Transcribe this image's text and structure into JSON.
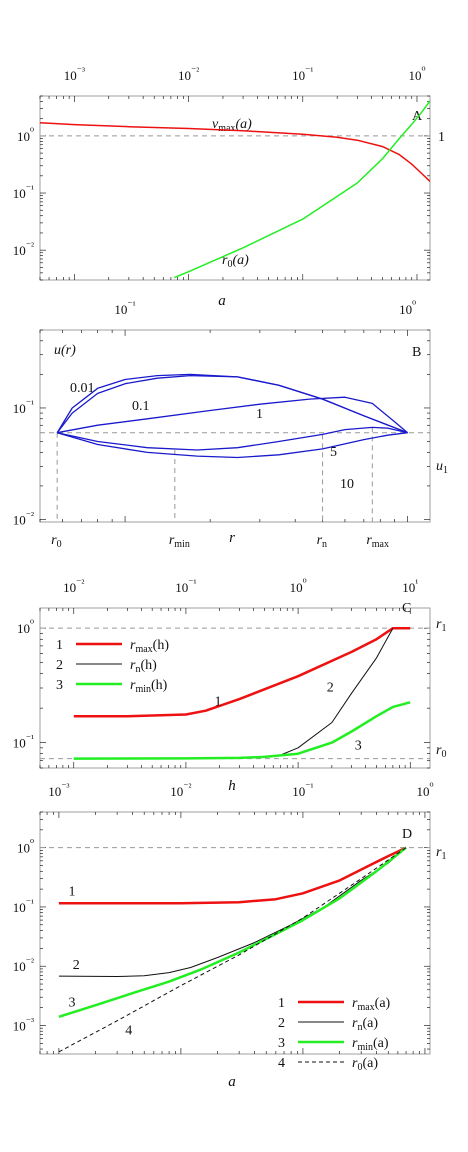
{
  "chart_data": [
    {
      "panel": "A",
      "type": "line",
      "xlabel": "a",
      "x_scale": "log",
      "y_scale": "log",
      "xlim": [
        0.0005,
        1.3
      ],
      "ylim": [
        0.003,
        5
      ],
      "x_ticks": [
        {
          "v": 0.001,
          "label": "10⁻³"
        },
        {
          "v": 0.01,
          "label": "10⁻²"
        },
        {
          "v": 0.1,
          "label": "10⁻¹"
        },
        {
          "v": 1,
          "label": "10⁰"
        }
      ],
      "y_ticks": [
        {
          "v": 1,
          "label": "10⁰"
        },
        {
          "v": 0.1,
          "label": "10⁻¹"
        },
        {
          "v": 0.01,
          "label": "10⁻²"
        }
      ],
      "hlines": [
        {
          "y": 1,
          "label": "1"
        }
      ],
      "series": [
        {
          "name": "vmax(a)",
          "color": "#ee1111",
          "width": 1.5,
          "x": [
            0.0005,
            0.001,
            0.003,
            0.01,
            0.03,
            0.1,
            0.2,
            0.3,
            0.5,
            0.7,
            0.9,
            1.1,
            1.3
          ],
          "y": [
            1.7,
            1.58,
            1.45,
            1.35,
            1.23,
            1.07,
            0.95,
            0.84,
            0.65,
            0.47,
            0.32,
            0.22,
            0.16
          ]
        },
        {
          "name": "r0(a)",
          "color": "#22ee22",
          "width": 1.5,
          "x": [
            0.0075,
            0.01,
            0.03,
            0.1,
            0.3,
            0.5,
            0.7,
            0.9,
            1.1,
            1.3
          ],
          "y": [
            0.0033,
            0.0042,
            0.011,
            0.035,
            0.15,
            0.4,
            0.9,
            1.6,
            2.6,
            4.1
          ]
        }
      ]
    },
    {
      "panel": "B",
      "type": "line",
      "xlabel": "r",
      "ylabel": "u(r)",
      "x_scale": "log",
      "y_scale": "log",
      "xlim": [
        0.05,
        1.2
      ],
      "ylim": [
        0.0095,
        0.5
      ],
      "x_ticks": [
        {
          "v": 0.1,
          "label": "10⁻¹"
        },
        {
          "v": 1,
          "label": "10⁰"
        }
      ],
      "y_ticks": [
        {
          "v": 0.1,
          "label": "10⁻¹"
        },
        {
          "v": 0.01,
          "label": "10⁻²"
        }
      ],
      "hlines": [
        {
          "y": 0.06,
          "label": "u1"
        }
      ],
      "bottom_markers": [
        {
          "x": 0.0575,
          "label": "r0"
        },
        {
          "x": 0.15,
          "label": "rmin"
        },
        {
          "x": 0.5,
          "label": "rn"
        },
        {
          "x": 0.75,
          "label": "rmax"
        }
      ],
      "series": [
        {
          "name": "0.01",
          "color": "#1a1acc",
          "width": 1.3,
          "x": [
            0.0575,
            0.065,
            0.08,
            0.1,
            0.13,
            0.17,
            0.25,
            0.35,
            0.5,
            0.7,
            1.0
          ],
          "y": [
            0.06,
            0.1,
            0.15,
            0.18,
            0.195,
            0.2,
            0.19,
            0.16,
            0.12,
            0.085,
            0.06
          ]
        },
        {
          "name": "0.1",
          "color": "#1a1acc",
          "width": 1.3,
          "x": [
            0.0575,
            0.065,
            0.08,
            0.1,
            0.13,
            0.17,
            0.25,
            0.35,
            0.5,
            0.7,
            1.0
          ],
          "y": [
            0.06,
            0.09,
            0.135,
            0.165,
            0.185,
            0.195,
            0.19,
            0.16,
            0.12,
            0.085,
            0.06
          ]
        },
        {
          "name": "1",
          "color": "#1a1acc",
          "width": 1.3,
          "x": [
            0.0575,
            0.08,
            0.12,
            0.2,
            0.3,
            0.45,
            0.6,
            0.75,
            0.9,
            1.0
          ],
          "y": [
            0.06,
            0.07,
            0.08,
            0.095,
            0.108,
            0.12,
            0.125,
            0.11,
            0.075,
            0.06
          ]
        },
        {
          "name": "5",
          "color": "#1a1acc",
          "width": 1.3,
          "x": [
            0.0575,
            0.08,
            0.12,
            0.18,
            0.25,
            0.35,
            0.5,
            0.6,
            0.75,
            0.85,
            1.0
          ],
          "y": [
            0.06,
            0.05,
            0.044,
            0.042,
            0.044,
            0.05,
            0.058,
            0.064,
            0.067,
            0.066,
            0.06
          ]
        },
        {
          "name": "10",
          "color": "#1a1acc",
          "width": 1.3,
          "x": [
            0.0575,
            0.08,
            0.12,
            0.18,
            0.25,
            0.35,
            0.5,
            0.7,
            0.85,
            1.0
          ],
          "y": [
            0.06,
            0.047,
            0.04,
            0.037,
            0.036,
            0.038,
            0.043,
            0.052,
            0.057,
            0.06
          ]
        }
      ]
    },
    {
      "panel": "C",
      "type": "line",
      "xlabel": "h",
      "x_scale": "log",
      "y_scale": "log",
      "xlim": [
        0.005,
        15
      ],
      "ylim": [
        0.06,
        1.5
      ],
      "x_ticks": [
        {
          "v": 0.01,
          "label": "10⁻²"
        },
        {
          "v": 0.1,
          "label": "10⁻¹"
        },
        {
          "v": 1,
          "label": "10⁰"
        },
        {
          "v": 10,
          "label": "10¹"
        }
      ],
      "y_ticks": [
        {
          "v": 1,
          "label": "10⁰"
        },
        {
          "v": 0.1,
          "label": "10⁻¹"
        }
      ],
      "hlines": [
        {
          "y": 1,
          "label": "r1"
        },
        {
          "y": 0.0725,
          "label": "r0"
        }
      ],
      "legend": [
        {
          "num": "1",
          "label": "rmax(h)"
        },
        {
          "num": "2",
          "label": "rn(h)"
        },
        {
          "num": "3",
          "label": "rmin(h)"
        }
      ],
      "series": [
        {
          "name": "rmax(h)",
          "color": "#ee1111",
          "width": 2.5,
          "x": [
            0.01,
            0.03,
            0.1,
            0.15,
            0.3,
            1,
            3,
            5,
            7,
            10
          ],
          "y": [
            0.17,
            0.17,
            0.176,
            0.19,
            0.24,
            0.38,
            0.62,
            0.8,
            1.0,
            1.0
          ]
        },
        {
          "name": "rn(h)",
          "color": "#111111",
          "width": 1,
          "x": [
            0.01,
            0.1,
            0.3,
            0.5,
            0.7,
            1,
            2,
            3,
            5,
            7
          ],
          "y": [
            0.0725,
            0.073,
            0.0735,
            0.075,
            0.078,
            0.09,
            0.15,
            0.27,
            0.55,
            1.0
          ]
        },
        {
          "name": "rmin(h)",
          "color": "#22ee22",
          "width": 2.5,
          "x": [
            0.01,
            0.1,
            0.3,
            0.5,
            1,
            2,
            3,
            5,
            7,
            10
          ],
          "y": [
            0.0725,
            0.0728,
            0.0735,
            0.075,
            0.08,
            0.1,
            0.125,
            0.17,
            0.205,
            0.225
          ]
        }
      ],
      "annotations": [
        {
          "text": "1",
          "x": 0.18,
          "y": 0.21
        },
        {
          "text": "2",
          "x": 1.8,
          "y": 0.28
        },
        {
          "text": "3",
          "x": 3.2,
          "y": 0.087
        }
      ]
    },
    {
      "panel": "D",
      "type": "line",
      "xlabel": "a",
      "x_scale": "log",
      "y_scale": "log",
      "xlim": [
        0.0007,
        1.1
      ],
      "ylim": [
        0.00033,
        4
      ],
      "x_ticks": [
        {
          "v": 0.001,
          "label": "10⁻³"
        },
        {
          "v": 0.01,
          "label": "10⁻²"
        },
        {
          "v": 0.1,
          "label": "10⁻¹"
        },
        {
          "v": 1,
          "label": "10⁰"
        }
      ],
      "y_ticks": [
        {
          "v": 1,
          "label": "10⁰"
        },
        {
          "v": 0.1,
          "label": "10⁻¹"
        },
        {
          "v": 0.01,
          "label": "10⁻²"
        },
        {
          "v": 0.001,
          "label": "10⁻³"
        }
      ],
      "hlines": [
        {
          "y": 1,
          "label": "r1"
        }
      ],
      "legend": [
        {
          "num": "1",
          "label": "rmax(a)"
        },
        {
          "num": "2",
          "label": "rn(a)"
        },
        {
          "num": "3",
          "label": "rmin(a)"
        },
        {
          "num": "4",
          "label": "r0(a)"
        }
      ],
      "series": [
        {
          "name": "rmax(a)",
          "color": "#ee1111",
          "width": 2.5,
          "x": [
            0.001,
            0.01,
            0.03,
            0.06,
            0.1,
            0.2,
            0.35,
            0.5,
            0.7
          ],
          "y": [
            0.115,
            0.115,
            0.12,
            0.135,
            0.17,
            0.28,
            0.5,
            0.72,
            1.0
          ]
        },
        {
          "name": "rn(a)",
          "color": "#111111",
          "width": 1,
          "x": [
            0.001,
            0.003,
            0.005,
            0.008,
            0.012,
            0.02,
            0.04,
            0.08,
            0.15,
            0.3,
            0.5,
            0.7
          ],
          "y": [
            0.0068,
            0.0067,
            0.0069,
            0.0078,
            0.0095,
            0.014,
            0.025,
            0.05,
            0.1,
            0.28,
            0.55,
            1.0
          ]
        },
        {
          "name": "rmin(a)",
          "color": "#22ee22",
          "width": 2.5,
          "x": [
            0.001,
            0.002,
            0.004,
            0.008,
            0.015,
            0.03,
            0.06,
            0.1,
            0.2,
            0.4,
            0.7
          ],
          "y": [
            0.0014,
            0.0022,
            0.0035,
            0.0055,
            0.009,
            0.017,
            0.035,
            0.06,
            0.14,
            0.4,
            1.0
          ]
        },
        {
          "name": "r0(a)",
          "color": "#111111",
          "width": 1,
          "dash": "4,3",
          "x": [
            0.001,
            0.003,
            0.01,
            0.03,
            0.1,
            0.3,
            0.7
          ],
          "y": [
            0.00036,
            0.0012,
            0.0047,
            0.0155,
            0.065,
            0.3,
            1.0
          ]
        }
      ],
      "annotations": [
        {
          "text": "1",
          "x": 0.0012,
          "y": 0.155
        },
        {
          "text": "2",
          "x": 0.0013,
          "y": 0.009
        },
        {
          "text": "3",
          "x": 0.0012,
          "y": 0.0021
        },
        {
          "text": "4",
          "x": 0.0035,
          "y": 0.0007
        }
      ]
    }
  ],
  "labels": {
    "A": {
      "panel": "A",
      "curve_v": "v",
      "curve_v_sub": "max",
      "curve_v_arg": "(a)",
      "curve_r": "r",
      "curve_r_sub": "0",
      "curve_r_arg": "(a)"
    },
    "B": {
      "panel": "B",
      "u_axis": "u(r)",
      "c001": "0.01",
      "c01": "0.1",
      "c1": "1",
      "c5": "5",
      "c10": "10",
      "u1": "u",
      "u1_sub": "1"
    },
    "C": {
      "panel": "C",
      "r1": "r",
      "r1_sub": "1",
      "r0": "r",
      "r0_sub": "0"
    },
    "D": {
      "panel": "D",
      "r1": "r",
      "r1_sub": "1"
    }
  }
}
